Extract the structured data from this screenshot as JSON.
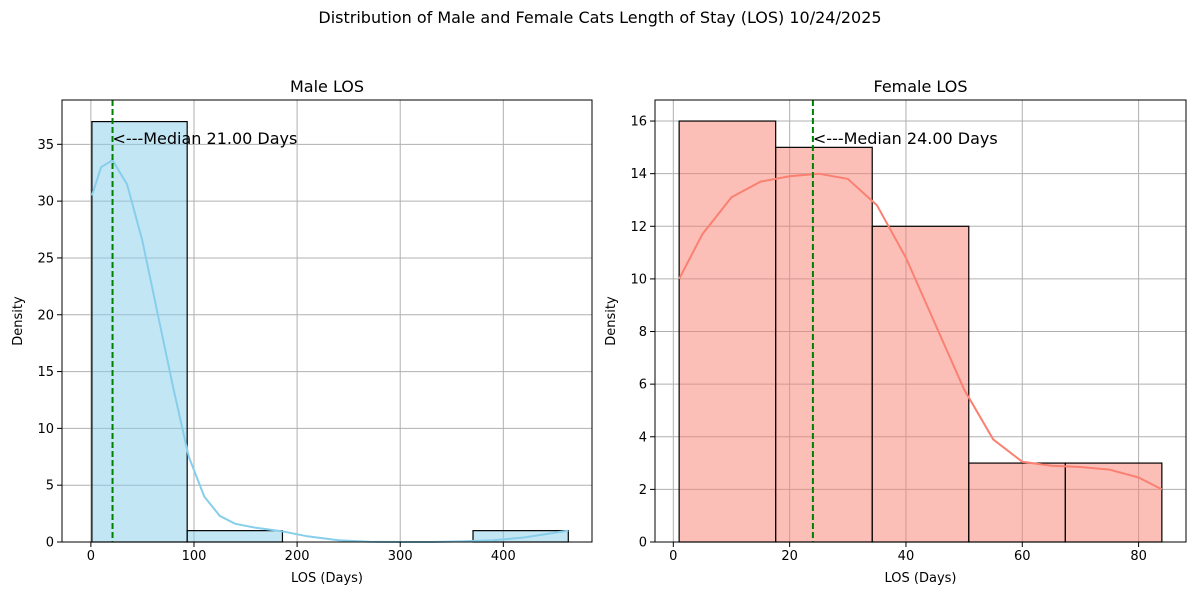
{
  "title": "Distribution of Male and Female Cats Length of Stay (LOS) 10/24/2025",
  "chart_data": [
    {
      "type": "bar",
      "title": "Male LOS",
      "xlabel": "LOS (Days)",
      "ylabel": "Density",
      "xlim": [
        -28,
        486
      ],
      "ylim": [
        0,
        38.9
      ],
      "xticks": [
        0,
        100,
        200,
        300,
        400
      ],
      "yticks": [
        0,
        5,
        10,
        15,
        20,
        25,
        30,
        35
      ],
      "grid": true,
      "bins": [
        {
          "x0": 1,
          "x1": 93.4,
          "value": 37
        },
        {
          "x0": 93.4,
          "x1": 185.8,
          "value": 1
        },
        {
          "x0": 185.8,
          "x1": 278.2,
          "value": 0
        },
        {
          "x0": 278.2,
          "x1": 370.6,
          "value": 0
        },
        {
          "x0": 370.6,
          "x1": 463,
          "value": 1
        }
      ],
      "kde": [
        [
          1,
          30.5
        ],
        [
          10,
          33.0
        ],
        [
          21,
          33.6
        ],
        [
          35,
          31.5
        ],
        [
          50,
          26.5
        ],
        [
          65,
          20.0
        ],
        [
          80,
          13.5
        ],
        [
          95,
          7.5
        ],
        [
          110,
          4.0
        ],
        [
          125,
          2.3
        ],
        [
          140,
          1.6
        ],
        [
          160,
          1.25
        ],
        [
          185,
          0.95
        ],
        [
          210,
          0.5
        ],
        [
          240,
          0.15
        ],
        [
          270,
          0.03
        ],
        [
          300,
          0.0
        ],
        [
          330,
          0.0
        ],
        [
          360,
          0.05
        ],
        [
          390,
          0.15
        ],
        [
          420,
          0.4
        ],
        [
          445,
          0.75
        ],
        [
          463,
          1.0
        ]
      ],
      "median_label": "<---Median 21.00 Days",
      "median": 21,
      "colors": {
        "fill": "#87ceeb",
        "line": "#87ceeb",
        "median": "#008000"
      }
    },
    {
      "type": "bar",
      "title": "Female LOS",
      "xlabel": "LOS (Days)",
      "ylabel": "Density",
      "xlim": [
        -3.15,
        88.15
      ],
      "ylim": [
        0,
        16.8
      ],
      "xticks": [
        0,
        20,
        40,
        60,
        80
      ],
      "yticks": [
        0,
        2,
        4,
        6,
        8,
        10,
        12,
        14,
        16
      ],
      "grid": true,
      "bins": [
        {
          "x0": 1,
          "x1": 17.6,
          "value": 16
        },
        {
          "x0": 17.6,
          "x1": 34.2,
          "value": 15
        },
        {
          "x0": 34.2,
          "x1": 50.8,
          "value": 12
        },
        {
          "x0": 50.8,
          "x1": 67.4,
          "value": 3
        },
        {
          "x0": 67.4,
          "x1": 84,
          "value": 3
        }
      ],
      "kde": [
        [
          1,
          10.0
        ],
        [
          5,
          11.7
        ],
        [
          10,
          13.1
        ],
        [
          15,
          13.7
        ],
        [
          20,
          13.9
        ],
        [
          25,
          14.0
        ],
        [
          30,
          13.8
        ],
        [
          35,
          12.8
        ],
        [
          40,
          10.8
        ],
        [
          45,
          8.3
        ],
        [
          50,
          5.8
        ],
        [
          55,
          3.9
        ],
        [
          60,
          3.05
        ],
        [
          65,
          2.9
        ],
        [
          70,
          2.85
        ],
        [
          75,
          2.75
        ],
        [
          80,
          2.45
        ],
        [
          84,
          2.0
        ]
      ],
      "median_label": "<---Median 24.00 Days",
      "median": 24,
      "colors": {
        "fill": "#fa8072",
        "line": "#fa8072",
        "median": "#008000"
      }
    }
  ]
}
